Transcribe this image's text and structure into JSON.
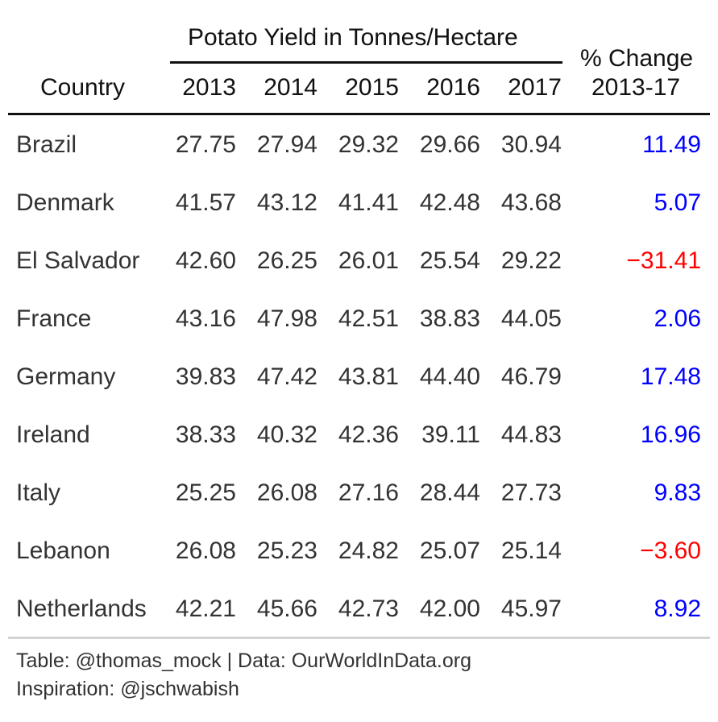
{
  "chart_data": {
    "type": "table",
    "spanner_label": "Potato Yield in Tonnes/Hectare",
    "columns": {
      "country": "Country",
      "years": [
        "2013",
        "2014",
        "2015",
        "2016",
        "2017"
      ],
      "change": [
        "% Change",
        "2013-17"
      ]
    },
    "rows": [
      {
        "country": "Brazil",
        "values": [
          "27.75",
          "27.94",
          "29.32",
          "29.66",
          "30.94"
        ],
        "change": "11.49"
      },
      {
        "country": "Denmark",
        "values": [
          "41.57",
          "43.12",
          "41.41",
          "42.48",
          "43.68"
        ],
        "change": "5.07"
      },
      {
        "country": "El Salvador",
        "values": [
          "42.60",
          "26.25",
          "26.01",
          "25.54",
          "29.22"
        ],
        "change": "−31.41"
      },
      {
        "country": "France",
        "values": [
          "43.16",
          "47.98",
          "42.51",
          "38.83",
          "44.05"
        ],
        "change": "2.06"
      },
      {
        "country": "Germany",
        "values": [
          "39.83",
          "47.42",
          "43.81",
          "44.40",
          "46.79"
        ],
        "change": "17.48"
      },
      {
        "country": "Ireland",
        "values": [
          "38.33",
          "40.32",
          "42.36",
          "39.11",
          "44.83"
        ],
        "change": "16.96"
      },
      {
        "country": "Italy",
        "values": [
          "25.25",
          "26.08",
          "27.16",
          "28.44",
          "27.73"
        ],
        "change": "9.83"
      },
      {
        "country": "Lebanon",
        "values": [
          "26.08",
          "25.23",
          "24.82",
          "25.07",
          "25.14"
        ],
        "change": "−3.60"
      },
      {
        "country": "Netherlands",
        "values": [
          "42.21",
          "45.66",
          "42.73",
          "42.00",
          "45.97"
        ],
        "change": "8.92"
      }
    ],
    "source_note": [
      "Table: @thomas_mock | Data: OurWorldInData.org",
      "Inspiration: @jschwabish"
    ]
  },
  "colors": {
    "positive": "#0000ff",
    "negative": "#ff0000",
    "text": "#333333",
    "header": "#111111",
    "rule": "#111111",
    "footer_rule": "#d3d3d3"
  }
}
